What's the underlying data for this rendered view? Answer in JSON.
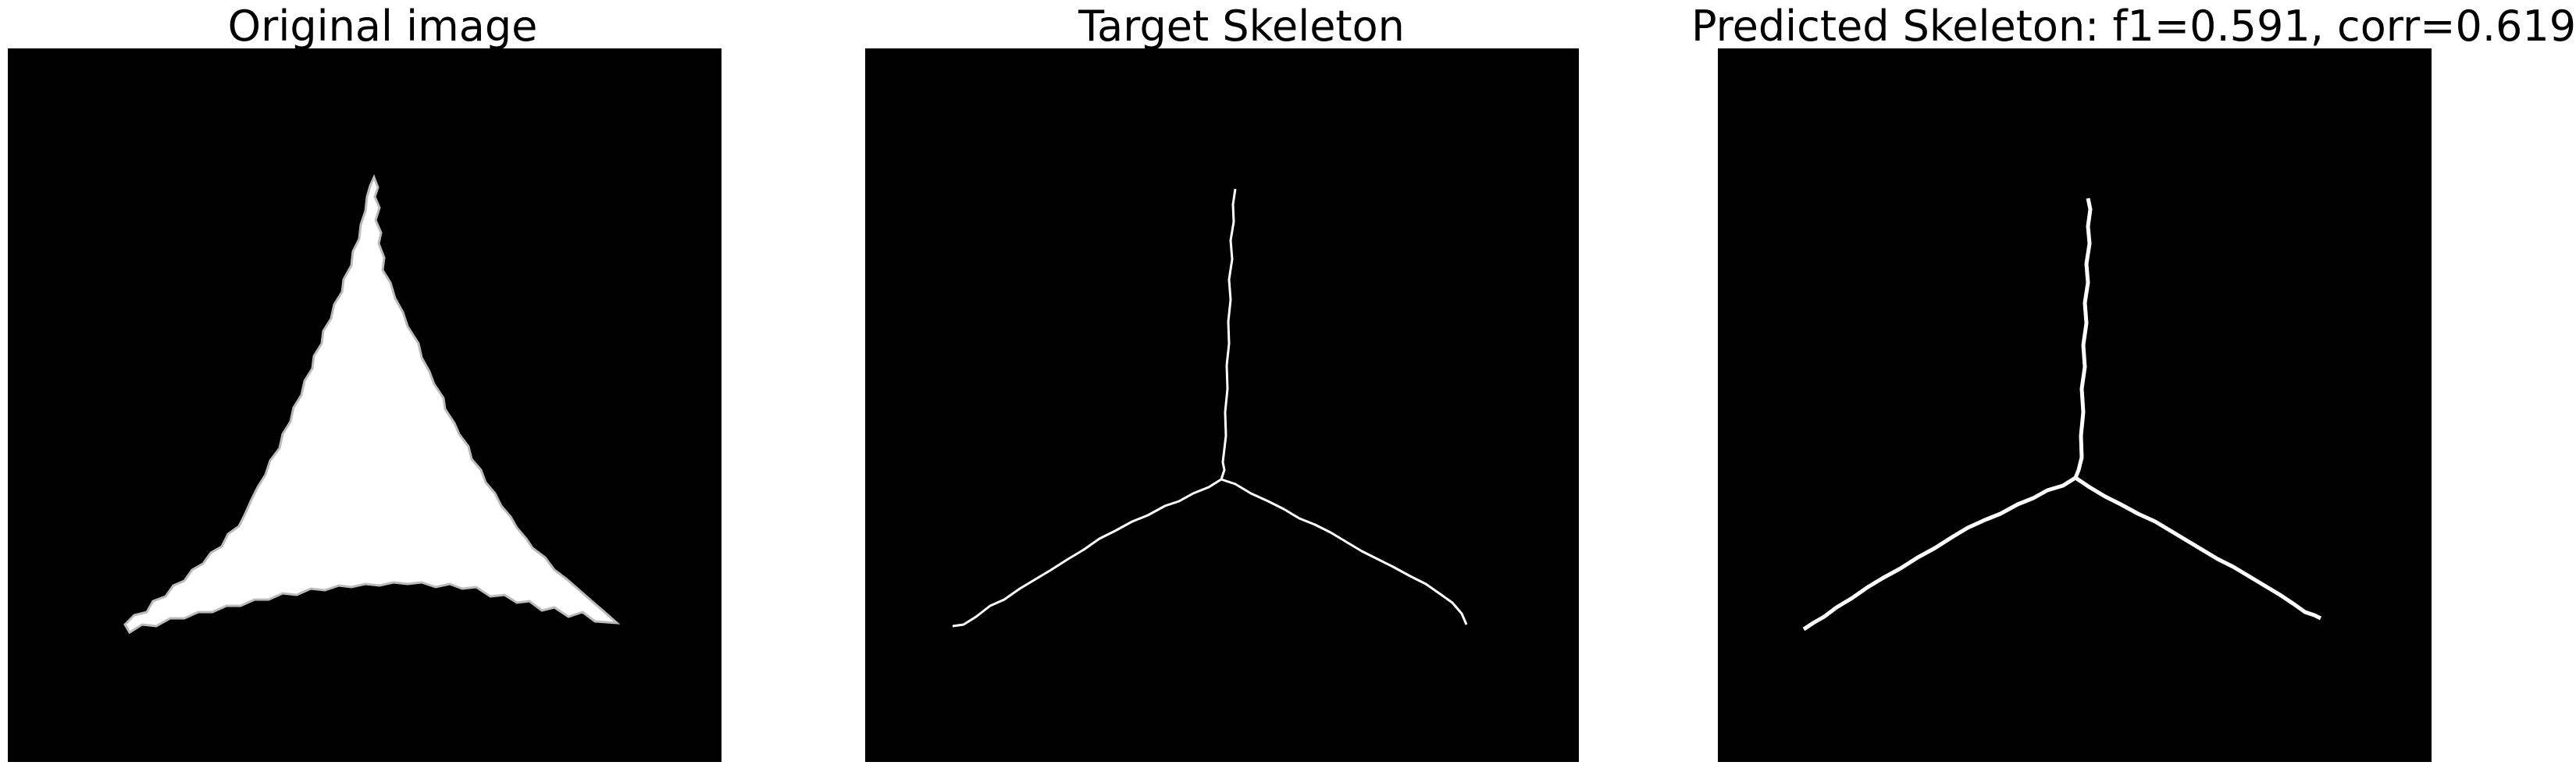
{
  "panels": [
    {
      "title": "Original image"
    },
    {
      "title": "Target Skeleton"
    },
    {
      "title": "Predicted Skeleton: f1=0.591, corr=0.619"
    }
  ],
  "colors": {
    "background": "#000000",
    "foreground": "#ffffff",
    "page": "#ffffff"
  }
}
